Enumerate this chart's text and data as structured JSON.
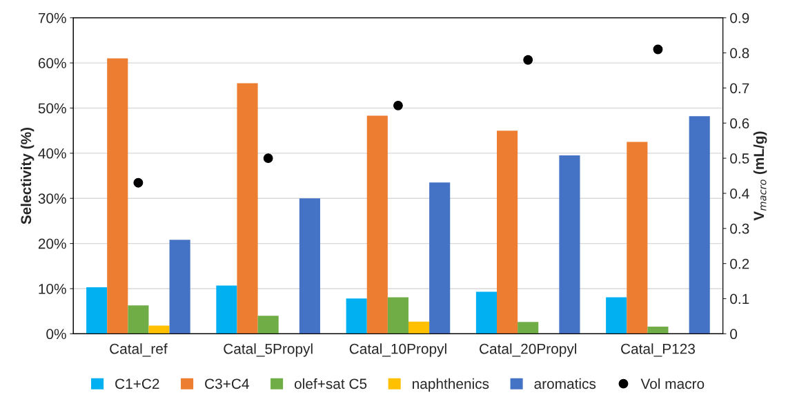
{
  "chart_data": {
    "type": "bar",
    "ylabel": "Selectivity (%)",
    "y2label": "V$_{macro}$ (mL/g)",
    "categories": [
      "Catal_ref",
      "Catal_5Propyl",
      "Catal_10Propyl",
      "Catal_20Propyl",
      "Catal_P123"
    ],
    "series": [
      {
        "name": "C1+C2",
        "color": "#00b0f0",
        "values": [
          10.3,
          10.7,
          7.8,
          9.3,
          8.1
        ]
      },
      {
        "name": "C3+C4",
        "color": "#ed7d31",
        "values": [
          61.0,
          55.5,
          48.3,
          45.0,
          42.5
        ]
      },
      {
        "name": "olef+sat C5",
        "color": "#70ad47",
        "values": [
          6.3,
          4.0,
          8.1,
          2.6,
          1.6
        ]
      },
      {
        "name": "naphthenics",
        "color": "#ffc000",
        "values": [
          1.8,
          null,
          2.7,
          null,
          null
        ]
      },
      {
        "name": "aromatics",
        "color": "#4472c4",
        "values": [
          20.8,
          30.0,
          33.5,
          39.5,
          48.2
        ]
      },
      {
        "name": "Vol macro",
        "color": "#000000",
        "type": "scatter",
        "axis": "y2",
        "marker": "circle",
        "values": [
          0.43,
          0.5,
          0.65,
          0.78,
          0.81
        ]
      }
    ],
    "ylim": [
      0,
      70
    ],
    "yticks": [
      {
        "value": 0,
        "label": "0%"
      },
      {
        "value": 10,
        "label": "10%"
      },
      {
        "value": 20,
        "label": "20%"
      },
      {
        "value": 30,
        "label": "30%"
      },
      {
        "value": 40,
        "label": "40%"
      },
      {
        "value": 50,
        "label": "50%"
      },
      {
        "value": 60,
        "label": "60%"
      },
      {
        "value": 70,
        "label": "70%"
      }
    ],
    "y2lim": [
      0,
      0.9
    ],
    "y2ticks": [
      0,
      0.1,
      0.2,
      0.3,
      0.4,
      0.5,
      0.6,
      0.7,
      0.8,
      0.9
    ],
    "grid": "y",
    "legend": "bottom"
  }
}
